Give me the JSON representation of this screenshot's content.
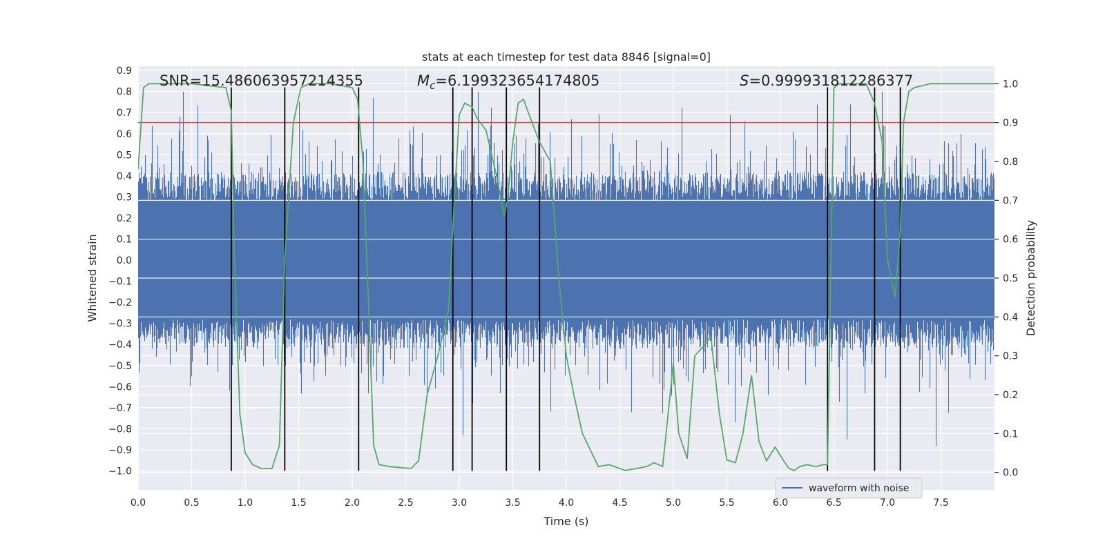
{
  "chart_data": {
    "type": "line",
    "title": "stats at each timestep for test data 8846 [signal=0]",
    "xlabel": "Time (s)",
    "ylabel": "Whitened strain",
    "ylabel_right": "Detection probability",
    "xlim": [
      0,
      8.0
    ],
    "ylim": [
      -1.09,
      0.92
    ],
    "ylim_right": [
      -0.045,
      1.045
    ],
    "x_ticks": [
      0.0,
      0.5,
      1.0,
      1.5,
      2.0,
      2.5,
      3.0,
      3.5,
      4.0,
      4.5,
      5.0,
      5.5,
      6.0,
      6.5,
      7.0,
      7.5
    ],
    "x_tick_labels": [
      "0.0",
      "0.5",
      "1.0",
      "1.5",
      "2.0",
      "2.5",
      "3.0",
      "3.5",
      "4.0",
      "4.5",
      "5.0",
      "5.5",
      "6.0",
      "6.5",
      "7.0",
      "7.5"
    ],
    "y_ticks": [
      0.9,
      0.8,
      0.7,
      0.6,
      0.5,
      0.4,
      0.3,
      0.2,
      0.1,
      0.0,
      -0.1,
      -0.2,
      -0.3,
      -0.4,
      -0.5,
      -0.6,
      -0.7,
      -0.8,
      -0.9,
      -1.0
    ],
    "y_tick_labels": [
      "0.9",
      "0.8",
      "0.7",
      "0.6",
      "0.5",
      "0.4",
      "0.3",
      "0.2",
      "0.1",
      "0.0",
      "−0.1",
      "−0.2",
      "−0.3",
      "−0.4",
      "−0.5",
      "−0.6",
      "−0.7",
      "−0.8",
      "−0.9",
      "−1.0"
    ],
    "y_ticks_right": [
      1.0,
      0.9,
      0.8,
      0.7,
      0.6,
      0.5,
      0.4,
      0.3,
      0.2,
      0.1,
      0.0
    ],
    "y_tick_labels_right": [
      "1.0",
      "0.9",
      "0.8",
      "0.7",
      "0.6",
      "0.5",
      "0.4",
      "0.3",
      "0.2",
      "0.1",
      "0.0"
    ],
    "grid": true,
    "legend": {
      "placement": "lower-right",
      "entries": [
        {
          "label": "waveform with noise",
          "color": "#4c72b0"
        }
      ]
    },
    "annotations": {
      "snr": "SNR=15.486063957214355",
      "mc_symbol": "M",
      "mc_sub": "c",
      "mc_value": "=6.199323654174805",
      "s_symbol": "S",
      "s_value": "=0.999931812286377"
    },
    "threshold": {
      "axis": "right",
      "value": 0.9,
      "color": "#c44e52"
    },
    "vertical_lines": {
      "x": [
        0.87,
        1.37,
        2.06,
        2.94,
        3.12,
        3.44,
        3.75,
        6.44,
        6.88,
        7.12
      ],
      "ymin": -1.0,
      "ymax": 0.82,
      "color": "#000000"
    },
    "waveform": {
      "color": "#4c72b0",
      "sampling_rate_hz": 2048,
      "duration_s": 8.0,
      "typical_amplitude": [
        -0.28,
        0.28
      ],
      "peak_range": [
        -1.0,
        0.8
      ]
    },
    "series": [
      {
        "axis": "right",
        "color": "#55a868",
        "x": [
          0.0,
          0.05,
          0.1,
          0.2,
          0.5,
          0.82,
          0.87,
          0.9,
          0.95,
          1.0,
          1.07,
          1.15,
          1.25,
          1.32,
          1.37,
          1.45,
          1.52,
          1.6,
          1.8,
          2.0,
          2.05,
          2.1,
          2.15,
          2.2,
          2.25,
          2.35,
          2.55,
          2.62,
          2.7,
          2.8,
          2.9,
          2.95,
          3.0,
          3.05,
          3.12,
          3.17,
          3.25,
          3.35,
          3.42,
          3.45,
          3.5,
          3.55,
          3.6,
          3.68,
          3.75,
          3.85,
          3.93,
          4.0,
          4.07,
          4.15,
          4.3,
          4.4,
          4.55,
          4.65,
          4.75,
          4.82,
          4.9,
          5.0,
          5.05,
          5.13,
          5.2,
          5.3,
          5.35,
          5.43,
          5.5,
          5.58,
          5.65,
          5.73,
          5.8,
          5.87,
          5.95,
          6.03,
          6.08,
          6.13,
          6.18,
          6.25,
          6.33,
          6.4,
          6.44,
          6.5,
          6.55,
          6.65,
          6.8,
          6.88,
          6.95,
          7.0,
          7.07,
          7.12,
          7.15,
          7.2,
          7.25,
          7.4,
          7.6,
          7.8,
          8.0
        ],
        "y": [
          0.78,
          0.99,
          1.0,
          1.0,
          1.0,
          0.99,
          0.93,
          0.55,
          0.15,
          0.05,
          0.02,
          0.01,
          0.01,
          0.07,
          0.55,
          0.9,
          0.99,
          1.0,
          1.0,
          0.99,
          0.96,
          0.8,
          0.45,
          0.07,
          0.02,
          0.015,
          0.01,
          0.03,
          0.2,
          0.3,
          0.42,
          0.68,
          0.92,
          0.95,
          0.94,
          0.91,
          0.88,
          0.76,
          0.66,
          0.7,
          0.85,
          0.95,
          0.96,
          0.9,
          0.85,
          0.8,
          0.5,
          0.3,
          0.2,
          0.1,
          0.015,
          0.02,
          0.005,
          0.01,
          0.015,
          0.025,
          0.015,
          0.28,
          0.1,
          0.035,
          0.3,
          0.33,
          0.35,
          0.15,
          0.032,
          0.025,
          0.1,
          0.25,
          0.08,
          0.03,
          0.065,
          0.03,
          0.01,
          0.005,
          0.015,
          0.02,
          0.015,
          0.02,
          0.02,
          0.99,
          1.0,
          1.0,
          1.0,
          0.95,
          0.85,
          0.55,
          0.45,
          0.62,
          0.9,
          0.98,
          0.99,
          1.0,
          1.0,
          1.0,
          1.0
        ]
      }
    ]
  }
}
